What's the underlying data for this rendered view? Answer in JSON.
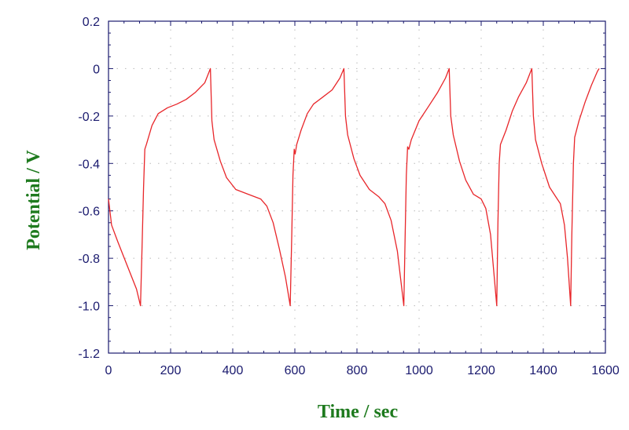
{
  "chart_data": {
    "type": "line",
    "title": "",
    "xlabel": "Time / sec",
    "ylabel": "Potential / V",
    "xlim": [
      0,
      1600
    ],
    "ylim": [
      -1.2,
      0.2
    ],
    "xticks": [
      0,
      200,
      400,
      600,
      800,
      1000,
      1200,
      1400,
      1600
    ],
    "yticks": [
      0.2,
      0,
      -0.2,
      -0.4,
      -0.6,
      -0.8,
      -1.0,
      -1.2
    ],
    "xtick_labels": [
      "0",
      "200",
      "400",
      "600",
      "800",
      "1000",
      "1200",
      "1400",
      "1600"
    ],
    "ytick_labels": [
      "0.2",
      "0",
      "-0.2",
      "-0.4",
      "-0.6",
      "-0.8",
      "-1.0",
      "-1.2"
    ],
    "grid": "dotted",
    "legend": "none",
    "colors": {
      "line": "#e8262a",
      "axis": "#1a1a6e",
      "axis_title": "#1e7a1e",
      "grid": "#b8b8b8"
    },
    "series": [
      {
        "values": [
          [
            0,
            -0.55
          ],
          [
            10,
            -0.66
          ],
          [
            30,
            -0.73
          ],
          [
            60,
            -0.83
          ],
          [
            90,
            -0.93
          ],
          [
            103,
            -1.0
          ],
          [
            108,
            -0.75
          ],
          [
            113,
            -0.5
          ],
          [
            117,
            -0.34
          ],
          [
            122,
            -0.32
          ],
          [
            140,
            -0.24
          ],
          [
            160,
            -0.19
          ],
          [
            190,
            -0.165
          ],
          [
            220,
            -0.15
          ],
          [
            250,
            -0.13
          ],
          [
            280,
            -0.1
          ],
          [
            310,
            -0.06
          ],
          [
            328,
            0
          ],
          [
            333,
            -0.22
          ],
          [
            340,
            -0.3
          ],
          [
            360,
            -0.39
          ],
          [
            380,
            -0.46
          ],
          [
            410,
            -0.51
          ],
          [
            450,
            -0.53
          ],
          [
            490,
            -0.55
          ],
          [
            510,
            -0.58
          ],
          [
            530,
            -0.65
          ],
          [
            550,
            -0.76
          ],
          [
            570,
            -0.88
          ],
          [
            585,
            -1.0
          ],
          [
            590,
            -0.7
          ],
          [
            594,
            -0.45
          ],
          [
            598,
            -0.34
          ],
          [
            601,
            -0.36
          ],
          [
            606,
            -0.32
          ],
          [
            620,
            -0.26
          ],
          [
            640,
            -0.19
          ],
          [
            660,
            -0.15
          ],
          [
            690,
            -0.12
          ],
          [
            720,
            -0.09
          ],
          [
            745,
            -0.04
          ],
          [
            758,
            0
          ],
          [
            763,
            -0.2
          ],
          [
            770,
            -0.28
          ],
          [
            790,
            -0.38
          ],
          [
            810,
            -0.45
          ],
          [
            840,
            -0.51
          ],
          [
            870,
            -0.54
          ],
          [
            890,
            -0.57
          ],
          [
            910,
            -0.64
          ],
          [
            930,
            -0.77
          ],
          [
            951,
            -1.0
          ],
          [
            955,
            -0.72
          ],
          [
            959,
            -0.45
          ],
          [
            963,
            -0.33
          ],
          [
            967,
            -0.34
          ],
          [
            975,
            -0.3
          ],
          [
            1000,
            -0.22
          ],
          [
            1030,
            -0.16
          ],
          [
            1060,
            -0.1
          ],
          [
            1085,
            -0.04
          ],
          [
            1097,
            0
          ],
          [
            1102,
            -0.2
          ],
          [
            1110,
            -0.28
          ],
          [
            1130,
            -0.39
          ],
          [
            1150,
            -0.47
          ],
          [
            1175,
            -0.53
          ],
          [
            1200,
            -0.55
          ],
          [
            1215,
            -0.59
          ],
          [
            1230,
            -0.7
          ],
          [
            1250,
            -1.0
          ],
          [
            1254,
            -0.65
          ],
          [
            1258,
            -0.4
          ],
          [
            1262,
            -0.32
          ],
          [
            1280,
            -0.26
          ],
          [
            1300,
            -0.18
          ],
          [
            1320,
            -0.12
          ],
          [
            1345,
            -0.06
          ],
          [
            1363,
            0
          ],
          [
            1368,
            -0.2
          ],
          [
            1375,
            -0.3
          ],
          [
            1395,
            -0.4
          ],
          [
            1420,
            -0.5
          ],
          [
            1440,
            -0.54
          ],
          [
            1455,
            -0.57
          ],
          [
            1468,
            -0.66
          ],
          [
            1478,
            -0.8
          ],
          [
            1488,
            -1.0
          ],
          [
            1492,
            -0.7
          ],
          [
            1497,
            -0.4
          ],
          [
            1501,
            -0.29
          ],
          [
            1515,
            -0.22
          ],
          [
            1535,
            -0.14
          ],
          [
            1555,
            -0.07
          ],
          [
            1575,
            -0.01
          ],
          [
            1580,
            0
          ]
        ]
      }
    ]
  }
}
